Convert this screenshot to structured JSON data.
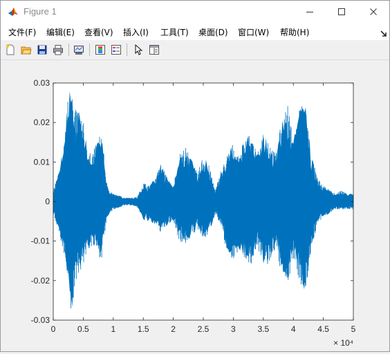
{
  "window": {
    "title": "Figure 1"
  },
  "menu": {
    "items": [
      "文件(F)",
      "编辑(E)",
      "查看(V)",
      "插入(I)",
      "工具(T)",
      "桌面(D)",
      "窗口(W)",
      "帮助(H)"
    ]
  },
  "toolbar": {
    "icons": [
      "new-figure-icon",
      "open-file-icon",
      "save-icon",
      "print-icon",
      "link-plot-icon",
      "insert-colorbar-icon",
      "insert-legend-icon",
      "edit-plot-arrow-icon",
      "property-inspector-icon"
    ]
  },
  "colors": {
    "signal": "#0072bd",
    "plot_bg": "#ffffff",
    "figure_bg": "#f0f0f0"
  },
  "chart_data": {
    "type": "line",
    "title": "",
    "xlabel": "",
    "ylabel": "",
    "xlim": [
      0,
      50000
    ],
    "ylim": [
      -0.03,
      0.03
    ],
    "x_ticks": [
      0,
      0.5,
      1,
      1.5,
      2,
      2.5,
      3,
      3.5,
      4,
      4.5,
      5
    ],
    "x_tick_labels": [
      "0",
      "0.5",
      "1",
      "1.5",
      "2",
      "2.5",
      "3",
      "3.5",
      "4",
      "4.5",
      "5"
    ],
    "x_exponent_label": "× 10⁴",
    "y_ticks": [
      0.03,
      0.02,
      0.01,
      0,
      -0.01,
      -0.02,
      -0.03
    ],
    "y_tick_labels": [
      "0.03",
      "0.02",
      "0.01",
      "0",
      "-0.01",
      "-0.02",
      "-0.03"
    ],
    "grid": false,
    "series": [
      {
        "color": "#0072bd",
        "envelope_x": [
          0,
          1000,
          2000,
          2500,
          3000,
          3500,
          4000,
          5000,
          6000,
          7000,
          8000,
          9000,
          10000,
          11000,
          12000,
          13000,
          14000,
          14500,
          15000,
          16000,
          17000,
          18000,
          19000,
          20000,
          21000,
          22000,
          23000,
          24000,
          25000,
          26000,
          27000,
          28000,
          29000,
          30000,
          31000,
          32000,
          33000,
          34000,
          35000,
          36000,
          37000,
          38000,
          39000,
          40000,
          41000,
          42000,
          43000,
          44000,
          45000,
          46000,
          47000,
          48000,
          49000,
          50000
        ],
        "envelope_max": [
          0.003,
          0.008,
          0.018,
          0.028,
          0.03,
          0.022,
          0.025,
          0.02,
          0.012,
          0.014,
          0.018,
          0.004,
          0.002,
          0.0015,
          0.001,
          0.001,
          0.0012,
          0.003,
          0.005,
          0.004,
          0.006,
          0.01,
          0.006,
          0.004,
          0.012,
          0.014,
          0.011,
          0.007,
          0.012,
          0.009,
          0.003,
          0.008,
          0.012,
          0.015,
          0.011,
          0.018,
          0.016,
          0.012,
          0.018,
          0.016,
          0.012,
          0.02,
          0.025,
          0.016,
          0.024,
          0.026,
          0.012,
          0.006,
          0.004,
          0.003,
          0.002,
          0.003,
          0.002,
          0.002
        ],
        "envelope_min": [
          -0.003,
          -0.008,
          -0.016,
          -0.022,
          -0.03,
          -0.024,
          -0.019,
          -0.016,
          -0.012,
          -0.012,
          -0.015,
          -0.004,
          -0.002,
          -0.0015,
          -0.001,
          -0.001,
          -0.0012,
          -0.003,
          -0.005,
          -0.005,
          -0.006,
          -0.008,
          -0.006,
          -0.005,
          -0.01,
          -0.011,
          -0.009,
          -0.007,
          -0.01,
          -0.008,
          -0.003,
          -0.007,
          -0.013,
          -0.015,
          -0.012,
          -0.015,
          -0.016,
          -0.011,
          -0.017,
          -0.016,
          -0.012,
          -0.019,
          -0.021,
          -0.015,
          -0.02,
          -0.024,
          -0.012,
          -0.006,
          -0.004,
          -0.003,
          -0.002,
          -0.002,
          -0.002,
          -0.002
        ]
      }
    ]
  }
}
